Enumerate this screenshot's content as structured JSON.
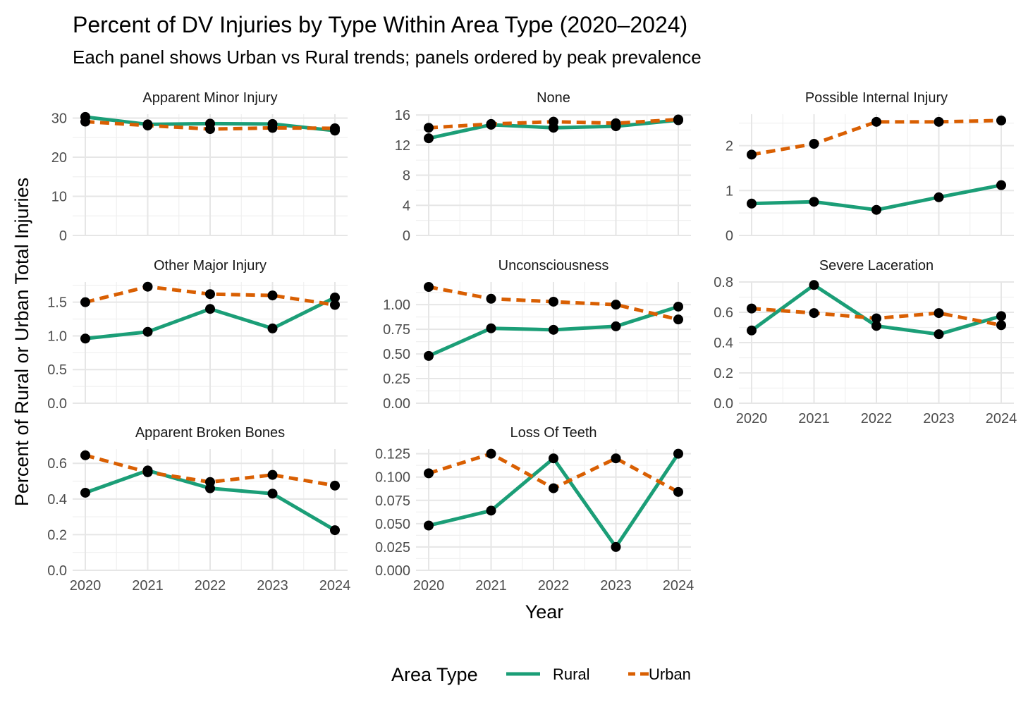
{
  "chart_data": {
    "type": "line",
    "title": "Percent of DV Injuries by Type Within Area Type (2020–2024)",
    "subtitle": "Each panel shows Urban vs Rural trends; panels ordered by peak prevalence",
    "xlabel": "Year",
    "ylabel": "Percent of Rural or Urban Total Injuries",
    "x": [
      "2020",
      "2021",
      "2022",
      "2023",
      "2024"
    ],
    "legend": {
      "title": "Area Type",
      "position": "bottom",
      "entries": [
        {
          "name": "Rural",
          "color": "#1b9e77",
          "dash": "solid"
        },
        {
          "name": "Urban",
          "color": "#d95f02",
          "dash": "dashed"
        }
      ]
    },
    "grid": true,
    "panels": [
      {
        "title": "Apparent Minor Injury",
        "ylim": [
          0,
          31
        ],
        "yticks": [
          0,
          10,
          20,
          30
        ],
        "ytick_labels": [
          "0",
          "10",
          "20",
          "30"
        ],
        "series": [
          {
            "name": "Rural",
            "values": [
              30.3,
              28.4,
              28.6,
              28.5,
              26.8
            ]
          },
          {
            "name": "Urban",
            "values": [
              29.1,
              28.1,
              27.2,
              27.5,
              27.4
            ]
          }
        ]
      },
      {
        "title": "None",
        "ylim": [
          0,
          16.1
        ],
        "yticks": [
          0,
          4,
          8,
          12,
          16
        ],
        "ytick_labels": [
          "0",
          "4",
          "8",
          "12",
          "16"
        ],
        "series": [
          {
            "name": "Rural",
            "values": [
              12.9,
              14.7,
              14.3,
              14.5,
              15.3
            ]
          },
          {
            "name": "Urban",
            "values": [
              14.3,
              14.8,
              15.1,
              14.9,
              15.4
            ]
          }
        ]
      },
      {
        "title": "Possible Internal Injury",
        "ylim": [
          0,
          2.7
        ],
        "yticks": [
          0,
          1,
          2
        ],
        "ytick_labels": [
          "0",
          "1",
          "2"
        ],
        "series": [
          {
            "name": "Rural",
            "values": [
              0.71,
              0.75,
              0.57,
              0.85,
              1.12
            ]
          },
          {
            "name": "Urban",
            "values": [
              1.8,
              2.04,
              2.53,
              2.53,
              2.56
            ]
          }
        ]
      },
      {
        "title": "Other Major Injury",
        "ylim": [
          0,
          1.8
        ],
        "yticks": [
          0,
          0.5,
          1,
          1.5
        ],
        "ytick_labels": [
          "0.0",
          "0.5",
          "1.0",
          "1.5"
        ],
        "series": [
          {
            "name": "Rural",
            "values": [
              0.96,
              1.06,
              1.4,
              1.11,
              1.57
            ]
          },
          {
            "name": "Urban",
            "values": [
              1.5,
              1.73,
              1.62,
              1.6,
              1.46
            ]
          }
        ]
      },
      {
        "title": "Unconsciousness",
        "ylim": [
          0,
          1.23
        ],
        "yticks": [
          0,
          0.25,
          0.5,
          0.75,
          1
        ],
        "ytick_labels": [
          "0.00",
          "0.25",
          "0.50",
          "0.75",
          "1.00"
        ],
        "series": [
          {
            "name": "Rural",
            "values": [
              0.48,
              0.76,
              0.745,
              0.78,
              0.98
            ]
          },
          {
            "name": "Urban",
            "values": [
              1.18,
              1.06,
              1.03,
              1.0,
              0.85
            ]
          }
        ]
      },
      {
        "title": "Severe Laceration",
        "ylim": [
          0,
          0.8
        ],
        "yticks": [
          0,
          0.2,
          0.4,
          0.6,
          0.8
        ],
        "ytick_labels": [
          "0.0",
          "0.2",
          "0.4",
          "0.6",
          "0.8"
        ],
        "series": [
          {
            "name": "Rural",
            "values": [
              0.48,
              0.78,
              0.51,
              0.455,
              0.575
            ]
          },
          {
            "name": "Urban",
            "values": [
              0.625,
              0.595,
              0.56,
              0.595,
              0.515
            ]
          }
        ]
      },
      {
        "title": "Apparent Broken Bones",
        "ylim": [
          0,
          0.68
        ],
        "yticks": [
          0,
          0.2,
          0.4,
          0.6
        ],
        "ytick_labels": [
          "0.0",
          "0.2",
          "0.4",
          "0.6"
        ],
        "series": [
          {
            "name": "Rural",
            "values": [
              0.435,
              0.56,
              0.46,
              0.43,
              0.225
            ]
          },
          {
            "name": "Urban",
            "values": [
              0.645,
              0.55,
              0.495,
              0.535,
              0.475
            ]
          }
        ]
      },
      {
        "title": "Loss Of Teeth",
        "ylim": [
          0,
          0.13
        ],
        "yticks": [
          0,
          0.025,
          0.05,
          0.075,
          0.1,
          0.125
        ],
        "ytick_labels": [
          "0.000",
          "0.025",
          "0.050",
          "0.075",
          "0.100",
          "0.125"
        ],
        "series": [
          {
            "name": "Rural",
            "values": [
              0.048,
              0.064,
              0.12,
              0.025,
              0.125
            ]
          },
          {
            "name": "Urban",
            "values": [
              0.104,
              0.125,
              0.088,
              0.12,
              0.084
            ]
          }
        ]
      }
    ]
  }
}
